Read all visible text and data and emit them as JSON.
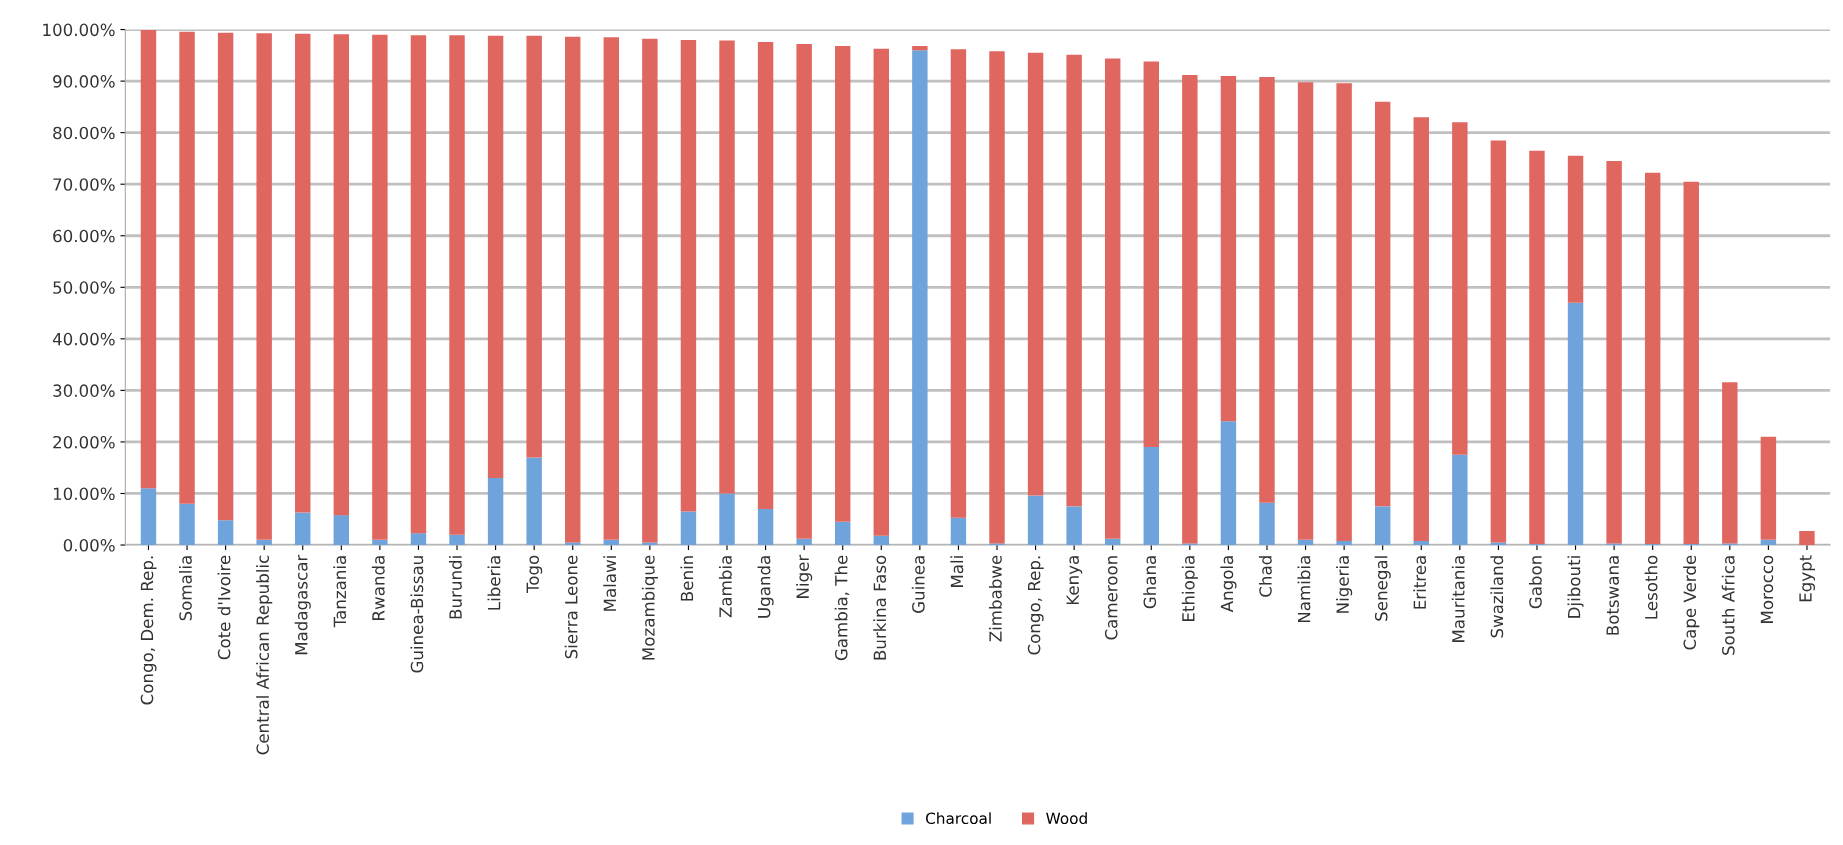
{
  "chart_data": {
    "type": "bar",
    "stacked": true,
    "categories": [
      "Congo, Dem. Rep.",
      "Somalia",
      "Cote d'Ivoire",
      "Central African Republic",
      "Madagascar",
      "Tanzania",
      "Rwanda",
      "Guinea-Bissau",
      "Burundi",
      "Liberia",
      "Togo",
      "Sierra Leone",
      "Malawi",
      "Mozambique",
      "Benin",
      "Zambia",
      "Uganda",
      "Niger",
      "Gambia, The",
      "Burkina Faso",
      "Guinea",
      "Mali",
      "Zimbabwe",
      "Congo, Rep.",
      "Kenya",
      "Cameroon",
      "Ghana",
      "Ethiopia",
      "Angola",
      "Chad",
      "Namibia",
      "Nigeria",
      "Senegal",
      "Eritrea",
      "Mauritania",
      "Swaziland",
      "Gabon",
      "Djibouti",
      "Botswana",
      "Lesotho",
      "Cape Verde",
      "South Africa",
      "Morocco",
      "Egypt"
    ],
    "series": [
      {
        "name": "Charcoal",
        "color": "#6fa3dc",
        "values": [
          11,
          8,
          4.8,
          1,
          6.3,
          5.8,
          1,
          2.3,
          2,
          13,
          17,
          0.5,
          1,
          0.5,
          6.5,
          10,
          7,
          1.2,
          4.5,
          1.8,
          96,
          5.3,
          0.3,
          9.6,
          7.5,
          1.2,
          19,
          0.3,
          24,
          8.2,
          1,
          0.8,
          7.5,
          0.8,
          17.5,
          0.5,
          0.2,
          47,
          0.3,
          0.2,
          0.2,
          0.3,
          1,
          null
        ]
      },
      {
        "name": "Wood",
        "color": "#e06660",
        "values": [
          88.9,
          91.6,
          94.6,
          98.3,
          92.9,
          93.3,
          98.0,
          96.6,
          96.9,
          85.8,
          81.8,
          98.1,
          97.5,
          97.7,
          91.5,
          87.9,
          90.6,
          96.0,
          92.3,
          94.5,
          0.8,
          90.9,
          95.5,
          85.9,
          87.6,
          93.2,
          74.8,
          90.9,
          67.0,
          82.6,
          88.8,
          88.8,
          78.5,
          82.2,
          64.5,
          78.0,
          76.3,
          28.5,
          74.2,
          72.0,
          70.3,
          31.3,
          20.0,
          2.7
        ]
      }
    ],
    "ylim": [
      0,
      100
    ],
    "yticks": [
      {
        "value": 0,
        "label": "0.00%"
      },
      {
        "value": 10,
        "label": "10.00%"
      },
      {
        "value": 20,
        "label": "20.00%"
      },
      {
        "value": 30,
        "label": "30.00%"
      },
      {
        "value": 40,
        "label": "40.00%"
      },
      {
        "value": 50,
        "label": "50.00%"
      },
      {
        "value": 60,
        "label": "60.00%"
      },
      {
        "value": 70,
        "label": "70.00%"
      },
      {
        "value": 80,
        "label": "80.00%"
      },
      {
        "value": 90,
        "label": "90.00%"
      },
      {
        "value": 100,
        "label": "100.00%"
      }
    ],
    "grid": "y",
    "legend": "bottom"
  }
}
